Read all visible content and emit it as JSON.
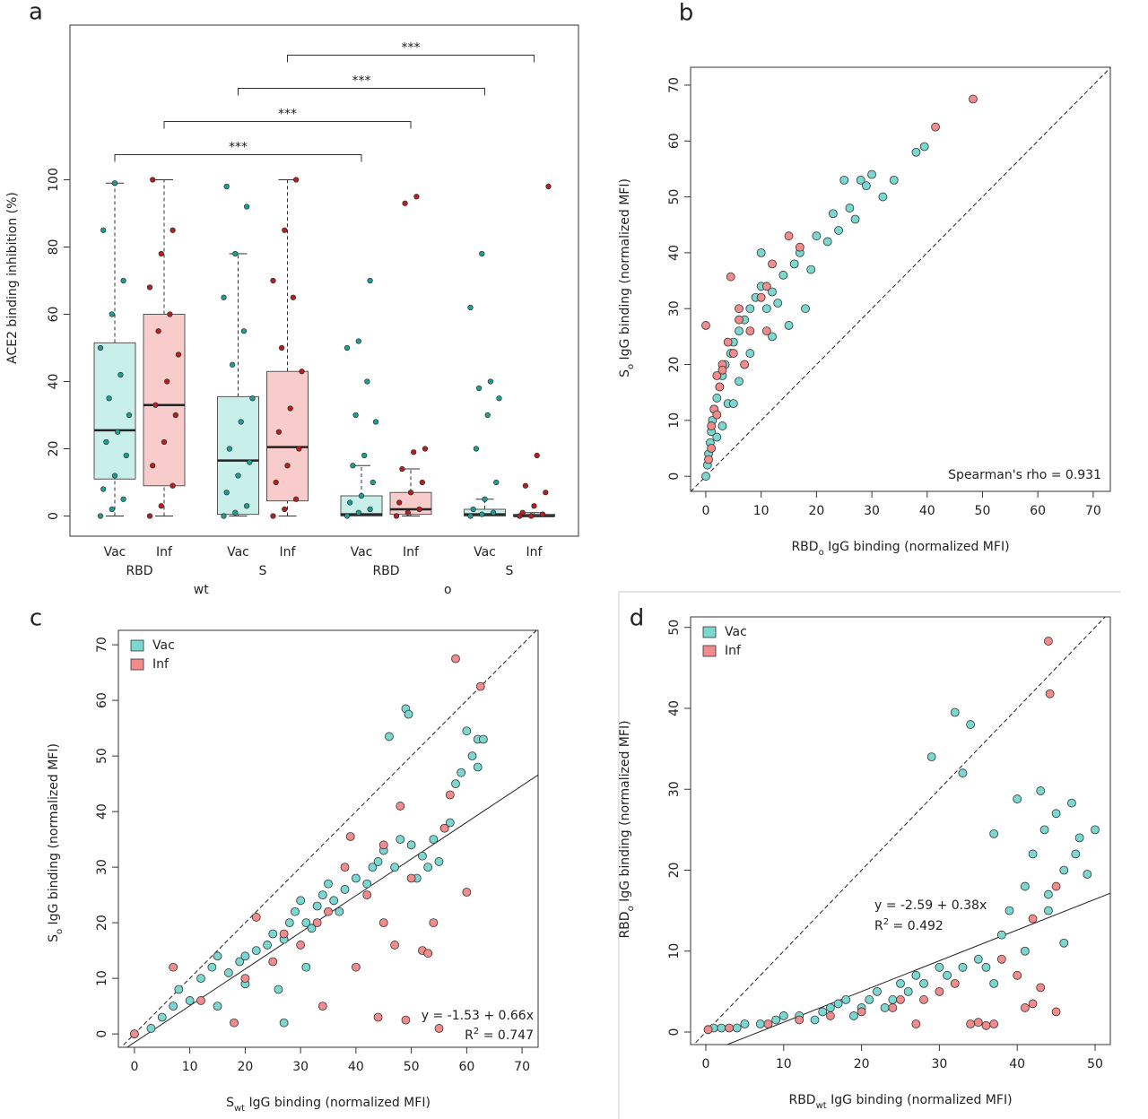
{
  "chart_data": [
    {
      "type": "box",
      "panel_label": "a",
      "y_label": "ACE2 binding inhibition (%)",
      "ylim": [
        -6,
        146
      ],
      "yticks": [
        0,
        20,
        40,
        60,
        80,
        100
      ],
      "categories": [
        "Vac",
        "Inf",
        "Vac",
        "Inf",
        "Vac",
        "Inf",
        "Vac",
        "Inf"
      ],
      "group_labels": [
        "RBD",
        "S",
        "RBD",
        "S"
      ],
      "super_labels": [
        "wt",
        "ο"
      ],
      "box_fill": {
        "Vac": "#c9efeb",
        "Inf": "#f9cccc"
      },
      "point_color": {
        "Vac": "#1f9e94",
        "Inf": "#b22222"
      },
      "boxes": [
        {
          "whislo": 0,
          "q1": 11,
          "med": 25.5,
          "q3": 51.5,
          "whishi": 99,
          "points": [
            0,
            2,
            5,
            8,
            12,
            18,
            22,
            25,
            30,
            35,
            42,
            50,
            60,
            70,
            85,
            99
          ]
        },
        {
          "whislo": 0,
          "q1": 9,
          "med": 33,
          "q3": 60,
          "whishi": 100,
          "points": [
            0,
            3,
            9,
            15,
            22,
            30,
            33,
            40,
            48,
            55,
            60,
            68,
            78,
            85,
            100
          ]
        },
        {
          "whislo": 0,
          "q1": 0.5,
          "med": 16.5,
          "q3": 35.5,
          "whishi": 78,
          "points": [
            0,
            1,
            3,
            7,
            12,
            16,
            20,
            28,
            35,
            45,
            55,
            65,
            78,
            92,
            98
          ]
        },
        {
          "whislo": 0,
          "q1": 4.5,
          "med": 20.5,
          "q3": 43,
          "whishi": 100,
          "points": [
            0,
            2,
            5,
            10,
            15,
            20,
            25,
            32,
            43,
            50,
            65,
            70,
            85,
            100
          ]
        },
        {
          "whislo": 0,
          "q1": 0,
          "med": 0.5,
          "q3": 6,
          "whishi": 15,
          "points": [
            0,
            1,
            2,
            4,
            6,
            10,
            15,
            18,
            28,
            30,
            40,
            50,
            52,
            70
          ]
        },
        {
          "whislo": 0,
          "q1": 0.5,
          "med": 2,
          "q3": 7,
          "whishi": 14,
          "points": [
            0,
            1,
            2,
            4,
            7,
            10,
            14,
            19,
            20,
            93,
            95
          ]
        },
        {
          "whislo": 0,
          "q1": 0,
          "med": 0.5,
          "q3": 2,
          "whishi": 5,
          "points": [
            0,
            0.5,
            1,
            2,
            5,
            10,
            20,
            30,
            35,
            38,
            40,
            62,
            78
          ]
        },
        {
          "whislo": 0,
          "q1": 0,
          "med": 0,
          "q3": 0.5,
          "whishi": 1,
          "points": [
            0,
            0,
            0.5,
            1,
            3,
            7,
            9,
            18,
            98
          ]
        }
      ],
      "comparisons": [
        {
          "from": 0,
          "to": 4,
          "label": "***"
        },
        {
          "from": 1,
          "to": 5,
          "label": "***"
        },
        {
          "from": 2,
          "to": 6,
          "label": "***"
        },
        {
          "from": 3,
          "to": 7,
          "label": "***"
        }
      ]
    },
    {
      "type": "scatter",
      "panel_label": "b",
      "x_label": {
        "parts": [
          {
            "text": "RBD"
          },
          {
            "text": "ο",
            "shift": "sub"
          },
          {
            "text": "  IgG binding (normalized MFI)"
          }
        ]
      },
      "y_label": {
        "parts": [
          {
            "text": "S"
          },
          {
            "text": "ο",
            "shift": "sub"
          },
          {
            "text": "  IgG binding (normalized MFI)"
          }
        ]
      },
      "xlim": [
        -2.75,
        73.1
      ],
      "ylim": [
        -2.7,
        73.2
      ],
      "xticks": [
        0,
        10,
        20,
        30,
        40,
        50,
        60,
        70
      ],
      "yticks": [
        0,
        10,
        20,
        30,
        40,
        50,
        60,
        70
      ],
      "diagonal": true,
      "annotations": [
        "Spearman's rho = 0.931"
      ],
      "series": [
        {
          "name": "Vac",
          "color": "#7ad8d0",
          "x": [
            0,
            0.3,
            0.5,
            0.8,
            1,
            1.2,
            1.5,
            2,
            2.5,
            3,
            3.5,
            4,
            4.5,
            5,
            6,
            7,
            8,
            9,
            10,
            11,
            12,
            13,
            14,
            15,
            16,
            17,
            18,
            19,
            20,
            22,
            23,
            24,
            25,
            26,
            27,
            28,
            29,
            30,
            32,
            34,
            38,
            39.5,
            6,
            5,
            8,
            10,
            3,
            2,
            7,
            12
          ],
          "y": [
            0,
            2,
            4,
            6,
            8,
            10,
            12,
            14,
            16,
            18,
            20,
            13,
            22,
            24,
            26,
            28,
            30,
            32,
            34,
            30,
            33,
            31,
            36,
            27,
            38,
            40,
            30,
            37,
            43,
            42,
            47,
            44,
            53,
            48,
            46,
            53,
            52,
            54,
            50,
            53,
            58,
            59,
            17,
            13,
            22,
            40,
            9,
            7,
            20,
            25
          ]
        },
        {
          "name": "Inf",
          "color": "#f28b8b",
          "x": [
            0,
            0.5,
            1,
            1.5,
            2,
            2.5,
            3,
            4,
            4.5,
            5,
            6,
            7,
            8,
            10,
            11,
            12,
            15,
            17,
            3,
            1,
            2,
            41.5,
            48.3,
            11,
            6
          ],
          "y": [
            27,
            3,
            9,
            12,
            18,
            16,
            20,
            24,
            35.7,
            22,
            28,
            20,
            26,
            32,
            34,
            38,
            43,
            41,
            19,
            5,
            11,
            62.5,
            67.5,
            26,
            30
          ]
        }
      ]
    },
    {
      "type": "scatter",
      "panel_label": "c",
      "x_label": {
        "parts": [
          {
            "text": "S"
          },
          {
            "text": "wt",
            "shift": "sub"
          },
          {
            "text": "  IgG binding (normalized MFI)"
          }
        ]
      },
      "y_label": {
        "parts": [
          {
            "text": "S"
          },
          {
            "text": "ο",
            "shift": "sub"
          },
          {
            "text": "  IgG binding (normalized MFI)"
          }
        ]
      },
      "xlim": [
        -2.9,
        72.9
      ],
      "ylim": [
        -2.4,
        72.6
      ],
      "xticks": [
        0,
        10,
        20,
        30,
        40,
        50,
        60,
        70
      ],
      "yticks": [
        0,
        10,
        20,
        30,
        40,
        50,
        60,
        70
      ],
      "diagonal": true,
      "legend": "top-left",
      "fit": {
        "intercept": -1.53,
        "slope": 0.66
      },
      "annotations": [
        "y = -1.53 + 0.66x",
        {
          "parts": [
            {
              "text": "R"
            },
            {
              "text": "2",
              "shift": "super"
            },
            {
              "text": " = 0.747"
            }
          ]
        }
      ],
      "series": [
        {
          "name": "Vac",
          "color": "#7ad8d0",
          "x": [
            0,
            3,
            5,
            7,
            8,
            10,
            12,
            14,
            15,
            17,
            19,
            20,
            22,
            24,
            25,
            27,
            28,
            29,
            30,
            31,
            32,
            33,
            34,
            35,
            36,
            37,
            38,
            40,
            42,
            43,
            44,
            45,
            46,
            47,
            48,
            49,
            49.5,
            50,
            51,
            52,
            53,
            54,
            55,
            56,
            57,
            58,
            59,
            60,
            61,
            62,
            62,
            63,
            27,
            31,
            26,
            20,
            15
          ],
          "y": [
            0,
            1,
            3,
            5,
            8,
            6,
            10,
            12,
            14,
            11,
            13,
            14,
            15,
            16,
            18,
            17,
            20,
            22,
            24,
            20,
            19,
            23,
            25,
            27,
            24,
            22,
            26,
            28,
            27,
            30,
            31,
            33,
            53.5,
            30,
            35,
            58.5,
            57.5,
            34,
            28,
            32,
            30,
            35,
            31,
            37,
            38,
            45,
            47,
            54.5,
            50,
            48,
            53,
            53,
            2,
            12,
            8,
            9,
            5
          ]
        },
        {
          "name": "Inf",
          "color": "#f28b8b",
          "x": [
            0,
            7,
            12,
            18,
            20,
            22,
            25,
            27,
            30,
            33,
            34,
            35,
            38,
            39,
            40,
            42,
            44,
            45,
            47,
            48,
            50,
            52,
            53,
            54,
            56,
            57,
            60,
            58,
            62.5,
            49,
            55,
            45
          ],
          "y": [
            0,
            12,
            6,
            2,
            10,
            21,
            13,
            18,
            16,
            20,
            5,
            22,
            30,
            35.5,
            12,
            25,
            3,
            34,
            16,
            41,
            28,
            15,
            14.5,
            20,
            37,
            43,
            25.5,
            67.5,
            62.5,
            2.5,
            1,
            20
          ]
        }
      ]
    },
    {
      "type": "scatter",
      "panel_label": "d",
      "x_label": {
        "parts": [
          {
            "text": "RBD"
          },
          {
            "text": "wt",
            "shift": "sub"
          },
          {
            "text": "  IgG binding (normalized MFI)"
          }
        ]
      },
      "y_label": {
        "parts": [
          {
            "text": "RBD"
          },
          {
            "text": "ο",
            "shift": "sub"
          },
          {
            "text": "  IgG binding (normalized MFI)"
          }
        ]
      },
      "xlim": [
        -1.96,
        51.96
      ],
      "ylim": [
        -1.55,
        51.3
      ],
      "xticks": [
        0,
        10,
        20,
        30,
        40,
        50
      ],
      "yticks": [
        0,
        10,
        20,
        30,
        40,
        50
      ],
      "diagonal": true,
      "legend": "top-left",
      "fit": {
        "intercept": -2.59,
        "slope": 0.38
      },
      "annotations": [
        "y = -2.59 + 0.38x",
        {
          "parts": [
            {
              "text": "R"
            },
            {
              "text": "2",
              "shift": "super"
            },
            {
              "text": " = 0.492"
            }
          ]
        }
      ],
      "series": [
        {
          "name": "Vac",
          "color": "#7ad8d0",
          "x": [
            0.3,
            1,
            2,
            4,
            5,
            7,
            9,
            10,
            12,
            14,
            15,
            16,
            17,
            18,
            19,
            20,
            21,
            22,
            23,
            24,
            25,
            26,
            27,
            28,
            29,
            30,
            31,
            32,
            33,
            34,
            35,
            36,
            37,
            38,
            39,
            40,
            41,
            42,
            43,
            43.5,
            44,
            45,
            46,
            47,
            47.5,
            48,
            49,
            50,
            41,
            44,
            46,
            37,
            33
          ],
          "y": [
            0.3,
            0.5,
            0.5,
            0.5,
            1,
            1,
            1.5,
            2,
            2,
            1.5,
            2.5,
            3,
            3.5,
            4,
            2,
            3,
            4,
            5,
            3,
            4,
            6,
            5,
            7,
            6,
            34,
            8,
            7,
            39.5,
            32,
            38,
            9,
            8,
            24.5,
            12,
            15,
            28.8,
            18,
            22,
            29.8,
            25,
            17,
            27,
            20,
            28.3,
            22,
            24,
            19.5,
            25,
            10,
            15,
            11,
            6,
            8
          ]
        },
        {
          "name": "Inf",
          "color": "#f28b8b",
          "x": [
            0.3,
            3,
            8,
            12,
            16,
            20,
            24,
            28,
            30,
            32,
            34,
            35,
            36,
            37,
            38,
            40,
            41,
            42,
            43,
            44,
            44.2,
            45,
            27,
            25,
            42,
            45
          ],
          "y": [
            0.3,
            0.5,
            1,
            1.5,
            2,
            2.5,
            3,
            4,
            5,
            6,
            1,
            1.2,
            0.8,
            1,
            9,
            7,
            3,
            3.5,
            5.5,
            48.3,
            41.8,
            2.5,
            1,
            4,
            14,
            18
          ]
        }
      ]
    }
  ]
}
